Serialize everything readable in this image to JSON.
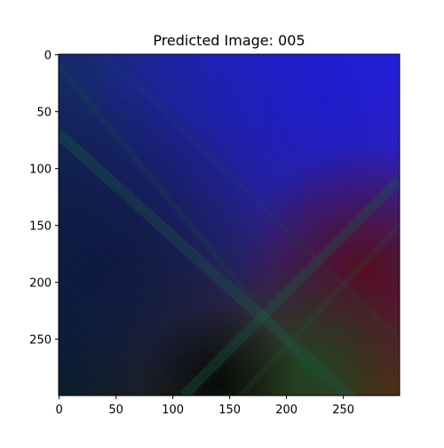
{
  "chart_data": {
    "type": "heatmap",
    "title": "Predicted Image: 005",
    "xlabel": "",
    "ylabel": "",
    "image_size": [
      300,
      300
    ],
    "xlim": [
      0,
      299
    ],
    "ylim": [
      299,
      0
    ],
    "x_ticks": [
      0,
      50,
      100,
      150,
      200,
      250
    ],
    "y_ticks": [
      0,
      50,
      100,
      150,
      200,
      250
    ],
    "grid": false,
    "legend": "none",
    "corner_colors": {
      "top_left": "#162a68",
      "top_right": "#2a22f0",
      "bottom_left": "#0a1e2a",
      "bottom_right": "#5a2a10"
    },
    "image_colors": {
      "blue_region": "#1a1ad0",
      "dark_navy_region": "#0a1540",
      "dark_red_region": "#5a0a10",
      "green_region": "#1a4a20",
      "diagonal_streak_color": "#1e5a48",
      "center_dark": "#020804"
    }
  }
}
